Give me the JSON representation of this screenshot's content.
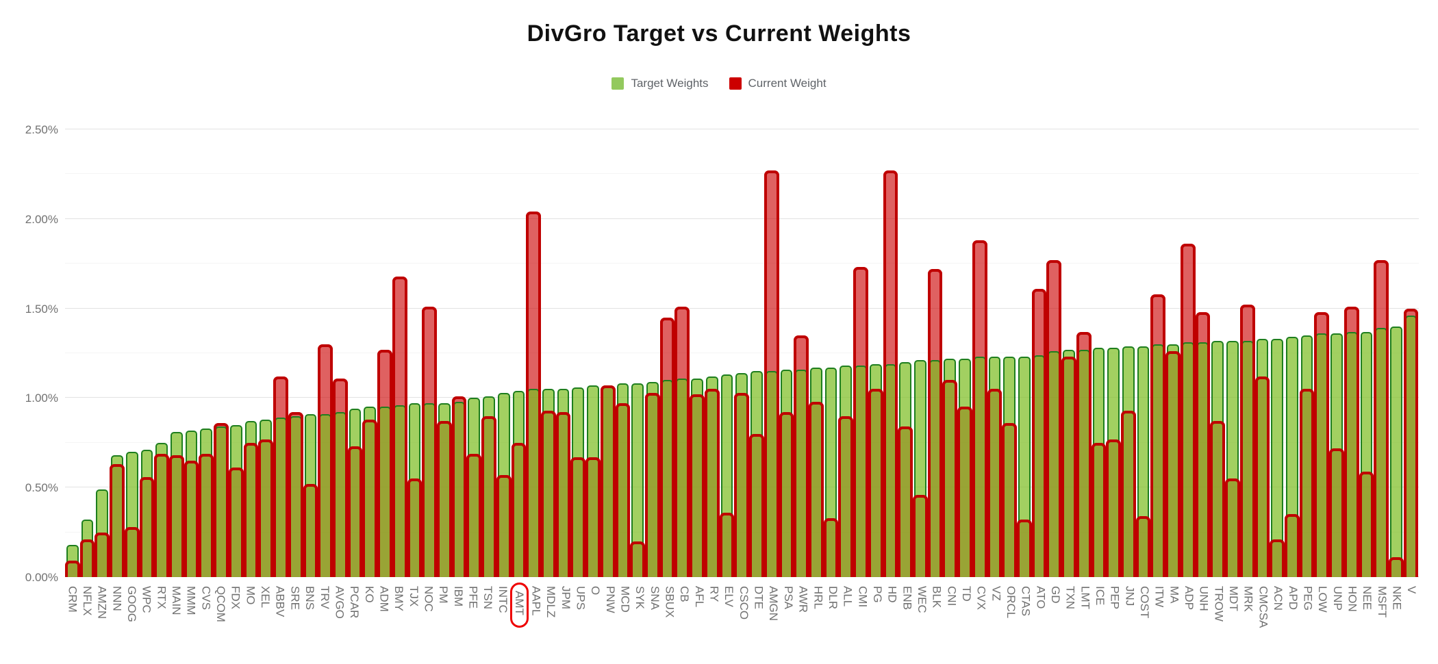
{
  "chart": {
    "title": "DivGro Target vs Current Weights",
    "legend": [
      {
        "label": "Target Weights",
        "color": "#93c95e"
      },
      {
        "label": "Current Weight",
        "color": "#cc0000"
      }
    ]
  },
  "chart_data": {
    "type": "bar",
    "title": "DivGro Target vs Current Weights",
    "xlabel": "",
    "ylabel": "",
    "ylim": [
      0,
      2.5
    ],
    "ytick_step": 0.5,
    "ytick_labels": [
      "2.50%",
      "2.00%",
      "1.50%",
      "1.00%",
      "0.50%",
      "0.00%"
    ],
    "grid": true,
    "legend_position": "top",
    "highlighted_ticker": "AMT",
    "colors": {
      "target_fill": "#a2d068",
      "target_border": "#1e7e1e",
      "current_stroke": "#bf0000",
      "current_fill": "#e06060"
    },
    "categories": [
      "CRM",
      "NFLX",
      "AMZN",
      "NNN",
      "GOOG",
      "WPC",
      "RTX",
      "MAIN",
      "MMM",
      "CVS",
      "QCOM",
      "FDX",
      "MO",
      "XEL",
      "ABBV",
      "SRE",
      "BNS",
      "TRV",
      "AVGO",
      "PCAR",
      "KO",
      "ADM",
      "BMY",
      "TJX",
      "NOC",
      "PM",
      "IBM",
      "PFE",
      "TSN",
      "INTC",
      "AMT",
      "AAPL",
      "MDLZ",
      "JPM",
      "UPS",
      "O",
      "PNW",
      "MCD",
      "SYK",
      "SNA",
      "SBUX",
      "CB",
      "AFL",
      "RY",
      "ELV",
      "CSCO",
      "DTE",
      "AMGN",
      "PSA",
      "AWR",
      "HRL",
      "DLR",
      "ALL",
      "CMI",
      "PG",
      "HD",
      "ENB",
      "WEC",
      "BLK",
      "CNI",
      "TD",
      "CVX",
      "VZ",
      "ORCL",
      "CTAS",
      "ATO",
      "GD",
      "TXN",
      "LMT",
      "ICE",
      "PEP",
      "JNJ",
      "COST",
      "ITW",
      "MA",
      "ADP",
      "UNH",
      "TROW",
      "MDT",
      "MRK",
      "CMCSA",
      "ACN",
      "APD",
      "PEG",
      "LOW",
      "UNP",
      "HON",
      "NEE",
      "MSFT",
      "NKE",
      "V"
    ],
    "series": [
      {
        "name": "Target Weights",
        "unit": "%",
        "values": [
          0.18,
          0.32,
          0.49,
          0.68,
          0.7,
          0.71,
          0.75,
          0.81,
          0.82,
          0.83,
          0.84,
          0.85,
          0.87,
          0.88,
          0.89,
          0.9,
          0.91,
          0.91,
          0.92,
          0.94,
          0.95,
          0.95,
          0.96,
          0.97,
          0.97,
          0.97,
          0.98,
          1.0,
          1.01,
          1.03,
          1.04,
          1.05,
          1.05,
          1.05,
          1.06,
          1.07,
          1.07,
          1.08,
          1.08,
          1.09,
          1.1,
          1.11,
          1.11,
          1.12,
          1.13,
          1.14,
          1.15,
          1.15,
          1.16,
          1.16,
          1.17,
          1.17,
          1.18,
          1.18,
          1.19,
          1.19,
          1.2,
          1.21,
          1.21,
          1.22,
          1.22,
          1.23,
          1.23,
          1.23,
          1.23,
          1.24,
          1.26,
          1.27,
          1.27,
          1.28,
          1.28,
          1.29,
          1.29,
          1.3,
          1.3,
          1.31,
          1.31,
          1.32,
          1.32,
          1.32,
          1.33,
          1.33,
          1.34,
          1.35,
          1.36,
          1.36,
          1.37,
          1.37,
          1.39,
          1.4,
          1.46
        ]
      },
      {
        "name": "Current Weight",
        "unit": "%",
        "values": [
          0.09,
          0.21,
          0.25,
          0.63,
          0.28,
          0.56,
          0.69,
          0.68,
          0.65,
          0.69,
          0.86,
          0.61,
          0.75,
          0.77,
          1.12,
          0.92,
          0.52,
          1.3,
          1.11,
          0.73,
          0.88,
          1.27,
          1.68,
          0.55,
          1.51,
          0.87,
          1.01,
          0.69,
          0.9,
          0.57,
          0.75,
          2.04,
          0.93,
          0.92,
          0.67,
          0.67,
          1.07,
          0.97,
          0.2,
          1.03,
          1.45,
          1.51,
          1.02,
          1.05,
          0.36,
          1.03,
          0.8,
          2.27,
          0.92,
          1.35,
          0.98,
          0.33,
          0.9,
          1.73,
          1.05,
          2.27,
          0.84,
          0.46,
          1.72,
          1.1,
          0.95,
          1.88,
          1.05,
          0.86,
          0.32,
          1.61,
          1.77,
          1.23,
          1.37,
          0.75,
          0.77,
          0.93,
          0.34,
          1.58,
          1.26,
          1.86,
          1.48,
          0.87,
          0.55,
          1.52,
          1.12,
          0.21,
          0.35,
          1.05,
          1.48,
          0.72,
          1.51,
          0.59,
          1.77,
          0.11,
          1.5
        ]
      }
    ]
  }
}
